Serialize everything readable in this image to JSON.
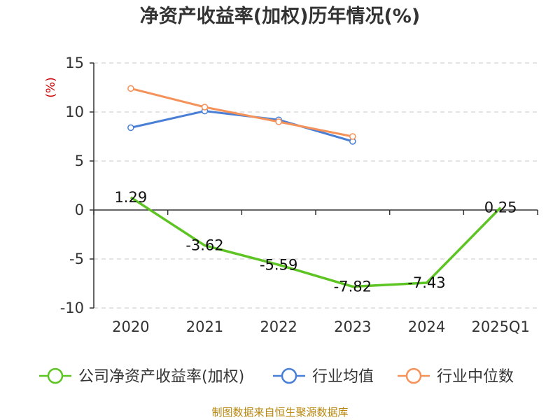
{
  "chart_data": {
    "type": "line",
    "title": "净资产收益率(加权)历年情况(%)",
    "ylabel": "(%)",
    "ylim": [
      -10,
      15
    ],
    "yticks": [
      "15",
      "10",
      "5",
      "0",
      "-5",
      "-10"
    ],
    "categories": [
      "2020",
      "2021",
      "2022",
      "2023",
      "2024",
      "2025Q1"
    ],
    "series": [
      {
        "name": "公司净资产收益率(加权)",
        "color": "#5dc423",
        "values": [
          1.29,
          -3.62,
          -5.59,
          -7.82,
          -7.43,
          0.25
        ],
        "labels": [
          "1.29",
          "-3.62",
          "-5.59",
          "-7.82",
          "-7.43",
          "0.25"
        ]
      },
      {
        "name": "行业均值",
        "color": "#4a7fd6",
        "values": [
          8.4,
          10.1,
          9.2,
          7.0,
          null,
          null
        ]
      },
      {
        "name": "行业中位数",
        "color": "#f5925a",
        "values": [
          12.4,
          10.5,
          9.0,
          7.5,
          null,
          null
        ]
      }
    ],
    "source": "制图数据来自恒生聚源数据库"
  }
}
